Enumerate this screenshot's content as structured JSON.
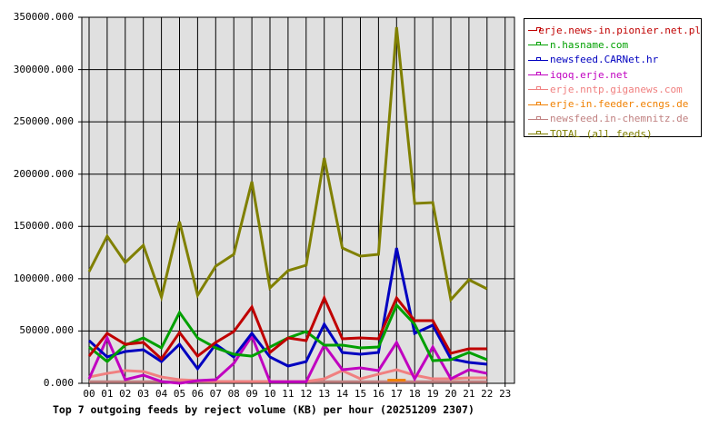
{
  "chart_data": {
    "type": "line",
    "title": "Top 7 outgoing feeds by reject volume (KB) per hour (20251209 2307)",
    "xlabel": "",
    "ylabel": "",
    "ylim": [
      0,
      350000
    ],
    "yticks": [
      "0.000",
      "50000.000",
      "100000.000",
      "150000.000",
      "200000.000",
      "250000.000",
      "300000.000",
      "350000.000"
    ],
    "categories": [
      "00",
      "01",
      "02",
      "03",
      "04",
      "05",
      "06",
      "07",
      "08",
      "09",
      "10",
      "11",
      "12",
      "13",
      "14",
      "15",
      "16",
      "17",
      "18",
      "19",
      "20",
      "21",
      "22",
      "23"
    ],
    "grid": true,
    "legend_position": "right",
    "series": [
      {
        "name": "erje.news-in.pionier.net.pl",
        "color": "#c00000",
        "values": [
          26000,
          47800,
          37300,
          39100,
          23400,
          48600,
          26000,
          39100,
          49500,
          73000,
          29500,
          43400,
          40800,
          81600,
          42600,
          43400,
          42600,
          81600,
          59900,
          59900,
          28700,
          33000,
          33000,
          null
        ]
      },
      {
        "name": "n.hasname.com",
        "color": "#00a000",
        "values": [
          34700,
          20800,
          36500,
          43400,
          33900,
          67700,
          43400,
          33900,
          27800,
          26000,
          34700,
          43400,
          49500,
          36500,
          36500,
          33900,
          34700,
          74700,
          56500,
          21700,
          22600,
          29500,
          22600,
          null
        ]
      },
      {
        "name": "newsfeed.CARNet.hr",
        "color": "#0000c0",
        "values": [
          40800,
          25200,
          30400,
          32100,
          20800,
          37300,
          13900,
          37300,
          25200,
          47800,
          25200,
          16500,
          20800,
          56500,
          29500,
          27800,
          29500,
          129400,
          47800,
          55600,
          23400,
          20000,
          18200,
          null
        ]
      },
      {
        "name": "iqoq.erje.net",
        "color": "#c000c0",
        "values": [
          4300,
          43400,
          3500,
          7800,
          1700,
          0,
          2600,
          3500,
          19100,
          45200,
          1500,
          1500,
          1500,
          36500,
          13000,
          14800,
          12200,
          39100,
          4300,
          34700,
          4300,
          13000,
          9500,
          null
        ]
      },
      {
        "name": "erje.nntp.giganews.com",
        "color": "#f08080",
        "values": [
          6000,
          9500,
          12200,
          11300,
          6000,
          3500,
          2600,
          1700,
          1700,
          1700,
          1700,
          1700,
          1700,
          4300,
          12200,
          4300,
          8700,
          13000,
          7800,
          4300,
          4300,
          5200,
          5200,
          null
        ]
      },
      {
        "name": "erje-in.feeder.ecngs.de",
        "color": "#f08000",
        "values": [
          null,
          null,
          null,
          null,
          null,
          null,
          null,
          null,
          null,
          null,
          null,
          null,
          null,
          null,
          null,
          null,
          null,
          3000,
          null,
          null,
          null,
          null,
          null,
          null
        ]
      },
      {
        "name": "newsfeed.in-chemnitz.de",
        "color": "#c08080",
        "values": [
          1500,
          1500,
          1500,
          1500,
          1500,
          1500,
          1500,
          1500,
          1500,
          1500,
          1500,
          1500,
          1500,
          1500,
          1500,
          1500,
          1500,
          1500,
          1500,
          1500,
          1500,
          1500,
          1500,
          null
        ]
      },
      {
        "name": "TOTAL (all feeds)",
        "color": "#808000",
        "values": [
          106800,
          140700,
          115500,
          132000,
          82500,
          154600,
          84200,
          112000,
          123300,
          192800,
          91200,
          107700,
          112900,
          215400,
          129400,
          121600,
          123300,
          340400,
          172000,
          172800,
          79900,
          99000,
          90300,
          null
        ]
      }
    ]
  },
  "legend": {
    "items": [
      {
        "label": "erje.news-in.pionier.net.pl",
        "color": "#c00000"
      },
      {
        "label": "n.hasname.com",
        "color": "#00a000"
      },
      {
        "label": "newsfeed.CARNet.hr",
        "color": "#0000c0"
      },
      {
        "label": "iqoq.erje.net",
        "color": "#c000c0"
      },
      {
        "label": "erje.nntp.giganews.com",
        "color": "#f08080"
      },
      {
        "label": "erje-in.feeder.ecngs.de",
        "color": "#f08000"
      },
      {
        "label": "newsfeed.in-chemnitz.de",
        "color": "#c08080"
      },
      {
        "label": "TOTAL (all feeds)",
        "color": "#808000"
      }
    ]
  },
  "title": "Top 7 outgoing feeds by reject volume (KB) per hour (20251209 2307)"
}
